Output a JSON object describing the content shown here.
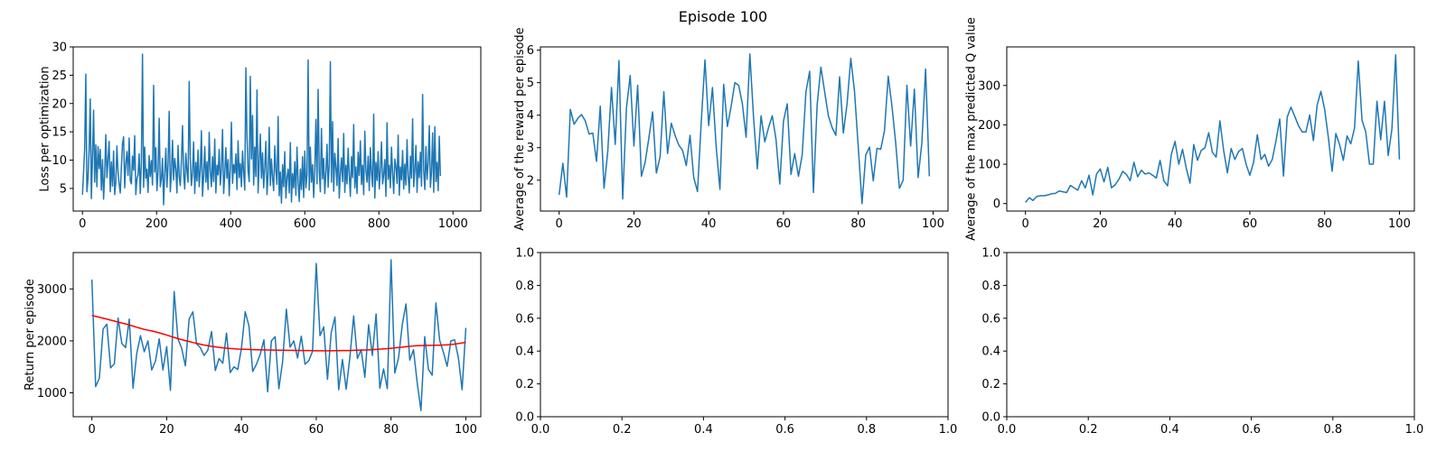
{
  "suptitle": "Episode 100",
  "colors": {
    "series_blue": "#1f77b4",
    "moving_avg_red": "#ff0000",
    "axes": "#000000",
    "background": "#ffffff"
  },
  "chart_data": [
    {
      "type": "line",
      "ylabel": "Loss per optimization",
      "xlabel": "",
      "xlim": [
        -25,
        1075
      ],
      "ylim": [
        1,
        30
      ],
      "xticks": [
        0,
        200,
        400,
        600,
        800,
        1000
      ],
      "yticks": [
        5,
        10,
        15,
        20,
        25,
        30
      ],
      "series": [
        {
          "color": "#1f77b4",
          "note_x": "x = 0..1049 step 3",
          "x_start": 0,
          "x_step": 3,
          "values": [
            3.9,
            7.9,
            12.1,
            25.2,
            4.4,
            6.8,
            11.9,
            20.8,
            3.2,
            10.4,
            18.8,
            6.1,
            12.7,
            5.3,
            12.4,
            8.5,
            11.9,
            4.7,
            10.1,
            3.1,
            7.6,
            14.5,
            6.9,
            10.2,
            13.3,
            4.4,
            9.7,
            5.4,
            11.6,
            3.9,
            6.1,
            12.5,
            7.8,
            5.8,
            4.2,
            8.7,
            12.9,
            14.1,
            5.1,
            9.4,
            11.5,
            7.3,
            13.9,
            6.4,
            5.8,
            10.7,
            8.2,
            14.3,
            3.9,
            6.7,
            7.4,
            11.1,
            4.1,
            9.6,
            28.7,
            5.2,
            12.3,
            6.8,
            8.4,
            4.3,
            10.8,
            7.1,
            9.9,
            5.6,
            23.2,
            7.9,
            12.2,
            4.6,
            8.1,
            17.4,
            5.3,
            6.7,
            10.3,
            2.1,
            7.6,
            12.1,
            5.2,
            9.3,
            18.6,
            4.4,
            7.7,
            13.5,
            6.5,
            10.3,
            8.4,
            4.2,
            12.6,
            7.1,
            5.5,
            9.8,
            16.1,
            7.7,
            4.9,
            11.2,
            8.1,
            6.1,
            23.9,
            10.1,
            5.5,
            7.8,
            13.2,
            4.1,
            9.6,
            6.3,
            11.8,
            5.3,
            8.3,
            15.2,
            3.6,
            7.2,
            12.4,
            6.1,
            9.7,
            4.8,
            14.9,
            8.1,
            5.3,
            10.6,
            6.2,
            13.7,
            4.2,
            9.1,
            7.4,
            11.9,
            5.6,
            8.4,
            15.4,
            4.1,
            7.4,
            12.2,
            6.8,
            10.1,
            3.7,
            8.6,
            16.7,
            5.9,
            9.2,
            7.7,
            11.1,
            4.8,
            13.4,
            6.9,
            9.4,
            5.3,
            11.6,
            7.8,
            4.7,
            26.3,
            14.1,
            8.1,
            6.2,
            24.8,
            10.2,
            17.9,
            5.6,
            12.3,
            7.1,
            22.4,
            4.2,
            9.4,
            14.6,
            6.8,
            11.3,
            5.1,
            8.7,
            13.3,
            3.9,
            7.5,
            15.8,
            5.5,
            10.2,
            6.9,
            4.6,
            12.5,
            8.1,
            5.7,
            17.7,
            3.7,
            7.9,
            2.4,
            9.2,
            5.3,
            11.5,
            3.3,
            6.9,
            8.4,
            4.2,
            13.1,
            2.6,
            7.6,
            5.1,
            9.7,
            3.8,
            12.3,
            6.1,
            2.7,
            8.4,
            4.8,
            10.6,
            3.4,
            11.6,
            5.1,
            7.5,
            27.7,
            4.7,
            12.3,
            6.1,
            9.2,
            3.4,
            8.3,
            17.2,
            5.8,
            22.5,
            8.1,
            4.4,
            15.6,
            6.7,
            10.3,
            4.1,
            7.9,
            12.8,
            5.2,
            9.1,
            27.4,
            6.1,
            16.8,
            4.5,
            11.2,
            8.7,
            5.5,
            13.8,
            3.3,
            7.7,
            10.4,
            6.2,
            14.7,
            4.3,
            9.1,
            5.8,
            12.1,
            7.4,
            3.6,
            10.6,
            6.9,
            16.3,
            5.1,
            8.8,
            4.1,
            11.4,
            7.3,
            13.4,
            5.7,
            9.1,
            3.9,
            15.1,
            8.2,
            6.1,
            10.7,
            4.6,
            12.2,
            7.6,
            5.3,
            18.1,
            3.3,
            9.6,
            6.4,
            11.5,
            4.9,
            8.2,
            13.2,
            5.8,
            7.4,
            10.1,
            3.6,
            16.6,
            6.6,
            9.1,
            5.1,
            12.3,
            7.7,
            4.1,
            10.2,
            8.9,
            5.9,
            14.4,
            3.8,
            8.8,
            6.5,
            11.7,
            4.9,
            9.3,
            5.6,
            13.6,
            7.1,
            4.2,
            10.7,
            6.8,
            17.3,
            5.3,
            8.2,
            12.6,
            4.3,
            9.7,
            6.9,
            11.4,
            5.4,
            21.6,
            8.1,
            4.8,
            12.4,
            6.6,
            9.5,
            16.1,
            5.2,
            7.8,
            14.8,
            4.3,
            15.9,
            6.2,
            9.6,
            4.6,
            14.2,
            7.2
          ]
        }
      ]
    },
    {
      "type": "line",
      "ylabel": "Average of the reward per episode",
      "xlabel": "",
      "xlim": [
        -5,
        104
      ],
      "ylim": [
        1.05,
        6.1
      ],
      "xticks": [
        0,
        20,
        40,
        60,
        80,
        100
      ],
      "yticks": [
        2,
        3,
        4,
        5,
        6
      ],
      "series": [
        {
          "color": "#1f77b4",
          "x_start": 0,
          "x_step": 1,
          "values": [
            1.55,
            2.52,
            1.48,
            4.18,
            3.72,
            3.9,
            4.02,
            3.82,
            3.42,
            3.45,
            2.58,
            4.28,
            1.75,
            2.88,
            4.85,
            3.1,
            5.68,
            1.42,
            4.22,
            5.22,
            3.05,
            4.92,
            2.12,
            2.55,
            3.3,
            4.1,
            2.22,
            2.72,
            4.72,
            2.82,
            3.75,
            3.38,
            3.08,
            2.92,
            2.45,
            3.38,
            2.08,
            1.65,
            3.78,
            5.7,
            3.68,
            4.85,
            3.02,
            1.72,
            4.95,
            3.65,
            4.28,
            5.0,
            4.92,
            4.35,
            3.32,
            5.88,
            3.92,
            2.35,
            3.98,
            3.18,
            3.62,
            3.98,
            3.25,
            1.88,
            3.82,
            4.35,
            2.18,
            2.82,
            2.12,
            2.78,
            4.72,
            5.35,
            1.62,
            4.32,
            5.48,
            4.72,
            3.98,
            3.62,
            3.38,
            5.18,
            3.45,
            4.35,
            5.75,
            4.72,
            3.0,
            1.28,
            2.78,
            3.02,
            1.98,
            2.98,
            2.95,
            3.52,
            5.2,
            4.28,
            3.15,
            1.75,
            2.0,
            4.92,
            3.05,
            4.8,
            2.08,
            3.15,
            5.42,
            2.12
          ]
        }
      ]
    },
    {
      "type": "line",
      "ylabel": "Average of the max predicted Q value",
      "xlabel": "",
      "xlim": [
        -5,
        104
      ],
      "ylim": [
        -19,
        398
      ],
      "xticks": [
        0,
        20,
        40,
        60,
        80,
        100
      ],
      "yticks": [
        0,
        100,
        200,
        300
      ],
      "series": [
        {
          "color": "#1f77b4",
          "x_start": 0,
          "x_step": 1,
          "values": [
            3,
            15,
            8,
            18,
            20,
            20,
            22,
            25,
            26,
            32,
            30,
            28,
            46,
            40,
            34,
            58,
            40,
            72,
            22,
            75,
            88,
            55,
            92,
            40,
            48,
            62,
            82,
            74,
            58,
            105,
            68,
            85,
            75,
            78,
            72,
            65,
            110,
            58,
            45,
            125,
            158,
            100,
            138,
            90,
            52,
            150,
            110,
            135,
            142,
            180,
            130,
            118,
            210,
            135,
            78,
            140,
            112,
            132,
            140,
            100,
            72,
            105,
            175,
            112,
            125,
            95,
            112,
            160,
            215,
            70,
            220,
            245,
            222,
            198,
            182,
            182,
            225,
            160,
            250,
            285,
            240,
            168,
            82,
            178,
            150,
            110,
            172,
            152,
            192,
            362,
            212,
            182,
            100,
            100,
            260,
            162,
            260,
            122,
            190,
            378,
            112
          ]
        }
      ]
    },
    {
      "type": "line",
      "ylabel": "Return per episode",
      "xlabel": "",
      "xlim": [
        -5,
        104
      ],
      "ylim": [
        540,
        3700
      ],
      "xticks": [
        0,
        20,
        40,
        60,
        80,
        100
      ],
      "yticks": [
        1000,
        2000,
        3000
      ],
      "series": [
        {
          "color": "#1f77b4",
          "x_start": 0,
          "x_step": 1,
          "values": [
            3180,
            1120,
            1280,
            2230,
            2320,
            1480,
            1560,
            2440,
            1950,
            1870,
            2420,
            1090,
            1760,
            2100,
            1790,
            2000,
            1440,
            1610,
            2040,
            1440,
            1890,
            1050,
            2950,
            2040,
            1860,
            1520,
            2420,
            2560,
            1940,
            1870,
            1720,
            1820,
            2180,
            1430,
            1660,
            1570,
            2150,
            1390,
            1500,
            1450,
            1860,
            2560,
            2290,
            1410,
            1550,
            1740,
            2020,
            1020,
            2000,
            2080,
            1080,
            1600,
            2610,
            1880,
            2000,
            1670,
            2090,
            1550,
            1620,
            1800,
            3490,
            2100,
            2270,
            1260,
            2160,
            2460,
            1060,
            1640,
            1070,
            1690,
            2480,
            1660,
            1830,
            1300,
            2310,
            1720,
            2520,
            1090,
            1460,
            1080,
            3560,
            1380,
            1670,
            2310,
            2710,
            1630,
            1830,
            1190,
            660,
            2080,
            1450,
            1340,
            2730,
            2010,
            1780,
            1510,
            2000,
            2020,
            1680,
            1060,
            2250
          ]
        },
        {
          "color": "#ff0000",
          "x_start": 0,
          "x_step": 1,
          "values": [
            2490,
            2472,
            2455,
            2437,
            2420,
            2400,
            2382,
            2362,
            2344,
            2326,
            2308,
            2285,
            2262,
            2242,
            2220,
            2206,
            2192,
            2174,
            2155,
            2133,
            2112,
            2088,
            2066,
            2044,
            2024,
            2005,
            1987,
            1969,
            1952,
            1936,
            1921,
            1908,
            1895,
            1885,
            1875,
            1867,
            1860,
            1853,
            1848,
            1843,
            1840,
            1837,
            1835,
            1832,
            1830,
            1828,
            1826,
            1825,
            1823,
            1822,
            1821,
            1820,
            1819,
            1818,
            1817,
            1816,
            1815,
            1814,
            1813,
            1812,
            1810,
            1810,
            1810,
            1810,
            1810,
            1811,
            1812,
            1813,
            1814,
            1815,
            1818,
            1820,
            1822,
            1825,
            1828,
            1832,
            1836,
            1841,
            1846,
            1851,
            1858,
            1865,
            1872,
            1880,
            1888,
            1895,
            1902,
            1907,
            1910,
            1912,
            1913,
            1914,
            1915,
            1917,
            1920,
            1924,
            1930,
            1938,
            1948,
            1960,
            1972
          ]
        }
      ]
    },
    {
      "type": "line",
      "ylabel": "",
      "xlabel": "",
      "xlim": [
        0,
        1
      ],
      "ylim": [
        0,
        1
      ],
      "xticks": [
        "0.0",
        "0.2",
        "0.4",
        "0.6",
        "0.8",
        "1.0"
      ],
      "yticks": [
        "0.0",
        "0.2",
        "0.4",
        "0.6",
        "0.8",
        "1.0"
      ],
      "series": []
    },
    {
      "type": "line",
      "ylabel": "",
      "xlabel": "",
      "xlim": [
        0,
        1
      ],
      "ylim": [
        0,
        1
      ],
      "xticks": [
        "0.0",
        "0.2",
        "0.4",
        "0.6",
        "0.8",
        "1.0"
      ],
      "yticks": [
        "0.0",
        "0.2",
        "0.4",
        "0.6",
        "0.8",
        "1.0"
      ],
      "series": []
    }
  ]
}
